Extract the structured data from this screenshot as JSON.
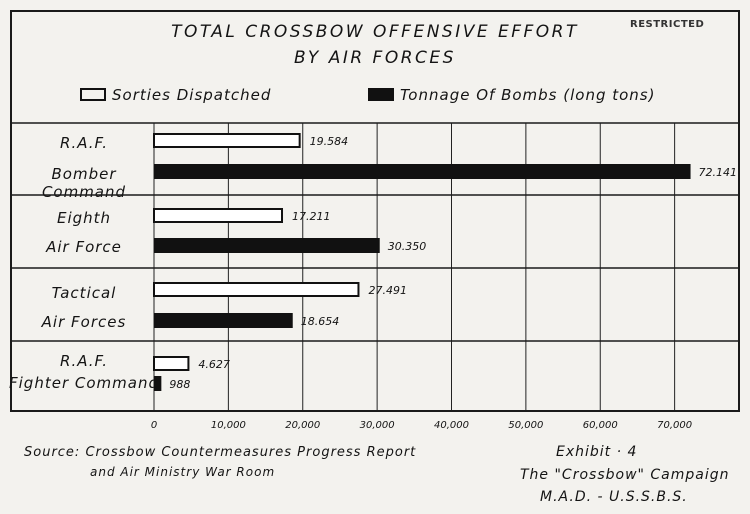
{
  "header": {
    "title_line1": "TOTAL CROSSBOW OFFENSIVE EFFORT",
    "title_line2": "BY AIR FORCES",
    "restricted": "RESTRICTED"
  },
  "legend": {
    "sorties": "Sorties Dispatched",
    "tonnage": "Tonnage Of Bombs (long tons)"
  },
  "categories": [
    {
      "line1": "R.A.F.",
      "line2": "Bomber Command"
    },
    {
      "line1": "Eighth",
      "line2": "Air Force"
    },
    {
      "line1": "Tactical",
      "line2": "Air Forces"
    },
    {
      "line1": "R.A.F.",
      "line2": "Fighter Command"
    }
  ],
  "footer": {
    "source_line1": "Source: Crossbow Countermeasures Progress Report",
    "source_line2": "and Air Ministry War Room",
    "exhibit": "Exhibit · 4",
    "campaign": "The \"Crossbow\" Campaign",
    "mad": "M.A.D. - U.S.S.B.S."
  },
  "chart_data": {
    "type": "bar",
    "orientation": "horizontal",
    "categories": [
      "R.A.F. Bomber Command",
      "Eighth Air Force",
      "Tactical Air Forces",
      "R.A.F. Fighter Command"
    ],
    "series": [
      {
        "name": "Sorties Dispatched",
        "values": [
          19584,
          17211,
          27491,
          4627
        ],
        "labels": [
          "19.584",
          "17.211",
          "27.491",
          "4.627"
        ],
        "color": "#ffffff"
      },
      {
        "name": "Tonnage Of Bombs (long tons)",
        "values": [
          72141,
          30350,
          18654,
          988
        ],
        "labels": [
          "72.141",
          "30.350",
          "18.654",
          "988"
        ],
        "color": "#111111"
      }
    ],
    "xlim": [
      0,
      80000
    ],
    "x_ticks": [
      0,
      10000,
      20000,
      30000,
      40000,
      50000,
      60000,
      70000
    ],
    "x_tick_labels": [
      "0",
      "10,000",
      "20,000",
      "30,000",
      "40,000",
      "50,000",
      "60,000",
      "70,000"
    ],
    "grid": true
  }
}
